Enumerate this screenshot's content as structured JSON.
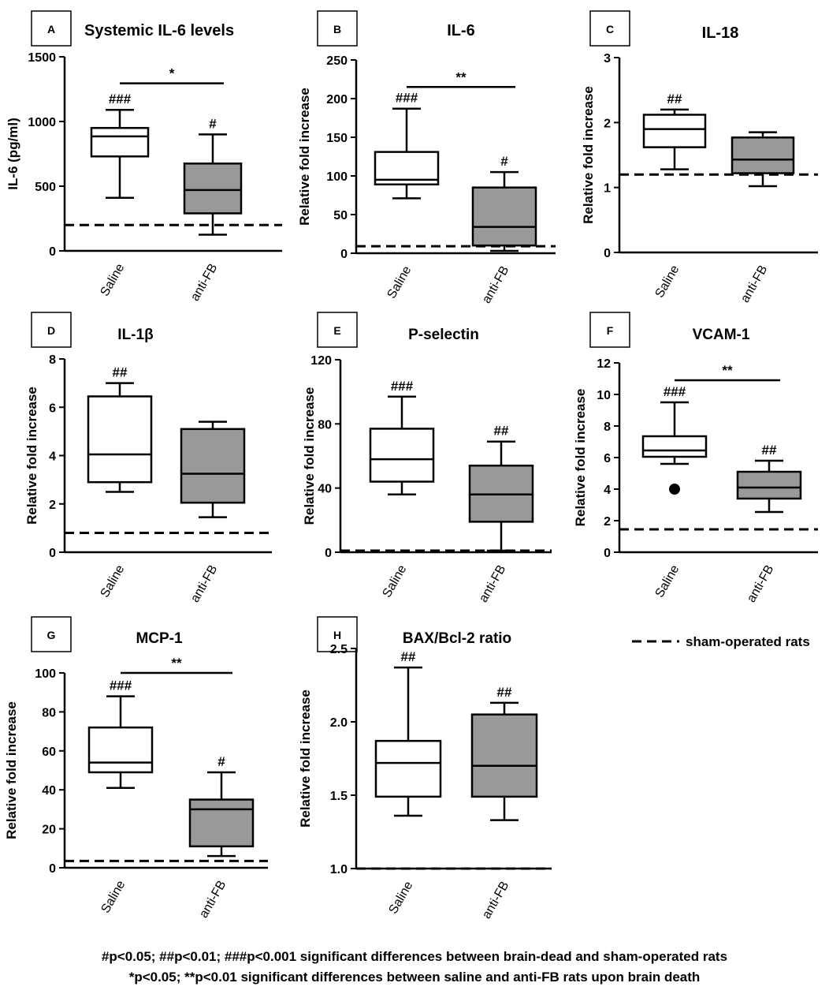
{
  "chart_data": [
    {
      "id": "A",
      "type": "box",
      "title": "Systemic IL-6 levels",
      "ylabel": "IL-6 (pg/ml)",
      "ylim": [
        0,
        1500
      ],
      "yticks": [
        0,
        500,
        1000,
        1500
      ],
      "categories": [
        "Saline",
        "anti-FB"
      ],
      "boxes": [
        {
          "fill": "#ffffff",
          "min": 410,
          "q1": 730,
          "median": 885,
          "q3": 950,
          "max": 1090,
          "annotation": "###"
        },
        {
          "fill": "#999999",
          "min": 125,
          "q1": 290,
          "median": 470,
          "q3": 675,
          "max": 900,
          "annotation": "#"
        }
      ],
      "sham": 200,
      "significance": {
        "label": "*",
        "y": 1295
      }
    },
    {
      "id": "B",
      "type": "box",
      "title": "IL-6",
      "ylabel": "Relative fold increase",
      "ylim": [
        0,
        250
      ],
      "yticks": [
        0,
        50,
        100,
        150,
        200,
        250
      ],
      "categories": [
        "Saline",
        "anti-FB"
      ],
      "boxes": [
        {
          "fill": "#ffffff",
          "min": 71,
          "q1": 89,
          "median": 95,
          "q3": 131,
          "max": 187,
          "annotation": "###"
        },
        {
          "fill": "#999999",
          "min": 3,
          "q1": 10,
          "median": 34,
          "q3": 85,
          "max": 105,
          "annotation": "#"
        }
      ],
      "sham": 9,
      "significance": {
        "label": "**",
        "y": 215
      }
    },
    {
      "id": "C",
      "type": "box",
      "title": "IL-18",
      "ylabel": "Relative fold increase",
      "ylim": [
        0,
        3
      ],
      "yticks": [
        0,
        1,
        2,
        3
      ],
      "categories": [
        "Saline",
        "anti-FB"
      ],
      "boxes": [
        {
          "fill": "#ffffff",
          "min": 1.28,
          "q1": 1.62,
          "median": 1.9,
          "q3": 2.12,
          "max": 2.2,
          "annotation": "##"
        },
        {
          "fill": "#999999",
          "min": 1.02,
          "q1": 1.22,
          "median": 1.43,
          "q3": 1.77,
          "max": 1.85,
          "annotation": ""
        }
      ],
      "sham": 1.2
    },
    {
      "id": "D",
      "type": "box",
      "title": "IL-1β",
      "ylabel": "Relative fold increase",
      "ylim": [
        0,
        8
      ],
      "yticks": [
        0,
        2,
        4,
        6,
        8
      ],
      "categories": [
        "Saline",
        "anti-FB"
      ],
      "boxes": [
        {
          "fill": "#ffffff",
          "min": 2.5,
          "q1": 2.9,
          "median": 4.05,
          "q3": 6.45,
          "max": 7.0,
          "annotation": "##"
        },
        {
          "fill": "#999999",
          "min": 1.45,
          "q1": 2.05,
          "median": 3.25,
          "q3": 5.1,
          "max": 5.4,
          "annotation": ""
        }
      ],
      "sham": 0.8
    },
    {
      "id": "E",
      "type": "box",
      "title": "P-selectin",
      "ylabel": "Relative fold increase",
      "ylim": [
        0,
        120
      ],
      "yticks": [
        0,
        40,
        80,
        120
      ],
      "categories": [
        "Saline",
        "anti-FB"
      ],
      "boxes": [
        {
          "fill": "#ffffff",
          "min": 36,
          "q1": 44,
          "median": 58,
          "q3": 77,
          "max": 97,
          "annotation": "###"
        },
        {
          "fill": "#999999",
          "min": 1,
          "q1": 19,
          "median": 36,
          "q3": 54,
          "max": 69,
          "annotation": "##"
        }
      ],
      "sham": 1
    },
    {
      "id": "F",
      "type": "box",
      "title": "VCAM-1",
      "ylabel": "Relative fold increase",
      "ylim": [
        0,
        12
      ],
      "yticks": [
        0,
        2,
        4,
        6,
        8,
        10,
        12
      ],
      "categories": [
        "Saline",
        "anti-FB"
      ],
      "boxes": [
        {
          "fill": "#ffffff",
          "min": 5.6,
          "q1": 6.05,
          "median": 6.45,
          "q3": 7.35,
          "max": 9.5,
          "annotation": "###",
          "outliers": [
            4.0
          ]
        },
        {
          "fill": "#999999",
          "min": 2.55,
          "q1": 3.4,
          "median": 4.1,
          "q3": 5.1,
          "max": 5.8,
          "annotation": "##"
        }
      ],
      "sham": 1.45,
      "significance": {
        "label": "**",
        "y": 10.9
      }
    },
    {
      "id": "G",
      "type": "box",
      "title": "MCP-1",
      "ylabel": "Relative fold increase",
      "ylim": [
        0,
        100
      ],
      "yticks": [
        0,
        20,
        40,
        60,
        80,
        100
      ],
      "categories": [
        "Saline",
        "anti-FB"
      ],
      "boxes": [
        {
          "fill": "#ffffff",
          "min": 41,
          "q1": 49,
          "median": 54,
          "q3": 72,
          "max": 88,
          "annotation": "###"
        },
        {
          "fill": "#999999",
          "min": 6,
          "q1": 11,
          "median": 30,
          "q3": 35,
          "max": 49,
          "annotation": "#"
        }
      ],
      "sham": 3.5,
      "significance": {
        "label": "**",
        "y": 100
      }
    },
    {
      "id": "H",
      "type": "box",
      "title": "BAX/Bcl-2 ratio",
      "ylabel": "Relative fold increase",
      "ylim": [
        1.0,
        2.5
      ],
      "yticks": [
        1.0,
        1.5,
        2.0,
        2.5
      ],
      "yformat": 1,
      "categories": [
        "Saline",
        "anti-FB"
      ],
      "boxes": [
        {
          "fill": "#ffffff",
          "min": 1.36,
          "q1": 1.49,
          "median": 1.72,
          "q3": 1.87,
          "max": 2.37,
          "annotation": "##"
        },
        {
          "fill": "#999999",
          "min": 1.33,
          "q1": 1.49,
          "median": 1.7,
          "q3": 2.05,
          "max": 2.13,
          "annotation": "##"
        }
      ],
      "sham": 1.0
    }
  ],
  "legend": {
    "label": "sham-operated rats",
    "position": "right"
  },
  "footnotes": [
    "#p<0.05; ##p<0.01; ###p<0.001 significant differences between brain-dead and sham-operated rats",
    "*p<0.05; **p<0.01 significant differences between saline and anti-FB rats upon brain death"
  ]
}
